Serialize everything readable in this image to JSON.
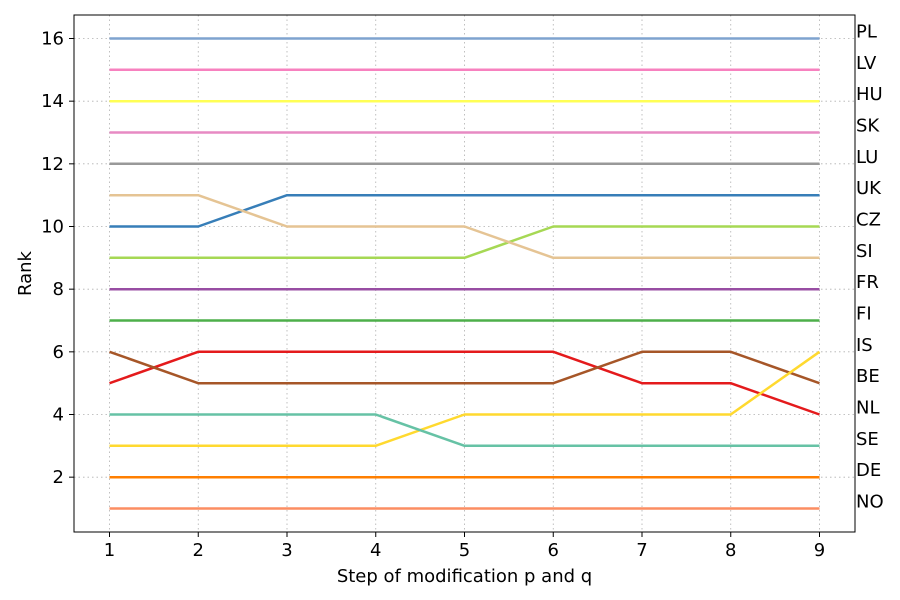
{
  "chart_data": {
    "type": "line",
    "title": "",
    "xlabel": "Step of modification p and q",
    "ylabel": "Rank",
    "x": [
      1,
      2,
      3,
      4,
      5,
      6,
      7,
      8,
      9
    ],
    "xlim": [
      0.6,
      9.4
    ],
    "ylim": [
      0.25,
      16.75
    ],
    "xticks": [
      1,
      2,
      3,
      4,
      5,
      6,
      7,
      8,
      9
    ],
    "yticks": [
      2,
      4,
      6,
      8,
      10,
      12,
      14,
      16
    ],
    "grid": true,
    "legend": "right-side labels",
    "right_labels": [
      "PL",
      "LV",
      "HU",
      "SK",
      "LU",
      "UK",
      "CZ",
      "SI",
      "FR",
      "FI",
      "IS",
      "BE",
      "NL",
      "SE",
      "DE",
      "NO"
    ],
    "right_label_ranks": [
      16,
      15,
      14,
      13,
      12,
      11,
      10,
      9,
      8,
      7,
      6,
      5,
      4,
      3,
      2,
      1
    ],
    "series": [
      {
        "values": [
          16,
          16,
          16,
          16,
          16,
          16,
          16,
          16,
          16
        ],
        "color": "#7fa3cf"
      },
      {
        "values": [
          15,
          15,
          15,
          15,
          15,
          15,
          15,
          15,
          15
        ],
        "color": "#f781bf"
      },
      {
        "values": [
          14,
          14,
          14,
          14,
          14,
          14,
          14,
          14,
          14
        ],
        "color": "#ffff55"
      },
      {
        "values": [
          13,
          13,
          13,
          13,
          13,
          13,
          13,
          13,
          13
        ],
        "color": "#e78ac3"
      },
      {
        "values": [
          12,
          12,
          12,
          12,
          12,
          12,
          12,
          12,
          12
        ],
        "color": "#999999"
      },
      {
        "values": [
          10,
          10,
          11,
          11,
          11,
          11,
          11,
          11,
          11
        ],
        "color": "#377eb8"
      },
      {
        "values": [
          9,
          9,
          9,
          9,
          9,
          10,
          10,
          10,
          10
        ],
        "color": "#a6d854"
      },
      {
        "values": [
          11,
          11,
          10,
          10,
          10,
          9,
          9,
          9,
          9
        ],
        "color": "#e5c494"
      },
      {
        "values": [
          8,
          8,
          8,
          8,
          8,
          8,
          8,
          8,
          8
        ],
        "color": "#984ea3"
      },
      {
        "values": [
          7,
          7,
          7,
          7,
          7,
          7,
          7,
          7,
          7
        ],
        "color": "#4daf4a"
      },
      {
        "values": [
          5,
          6,
          6,
          6,
          6,
          6,
          5,
          5,
          4
        ],
        "color": "#e41a1c"
      },
      {
        "values": [
          6,
          5,
          5,
          5,
          5,
          5,
          6,
          6,
          5
        ],
        "color": "#a65628"
      },
      {
        "values": [
          3,
          3,
          3,
          3,
          4,
          4,
          4,
          4,
          6
        ],
        "color": "#ffd92f"
      },
      {
        "values": [
          4,
          4,
          4,
          4,
          3,
          3,
          3,
          3,
          3
        ],
        "color": "#66c2a5"
      },
      {
        "values": [
          2,
          2,
          2,
          2,
          2,
          2,
          2,
          2,
          2
        ],
        "color": "#ff7f00"
      },
      {
        "values": [
          1,
          1,
          1,
          1,
          1,
          1,
          1,
          1,
          1
        ],
        "color": "#fc8d62"
      }
    ]
  }
}
